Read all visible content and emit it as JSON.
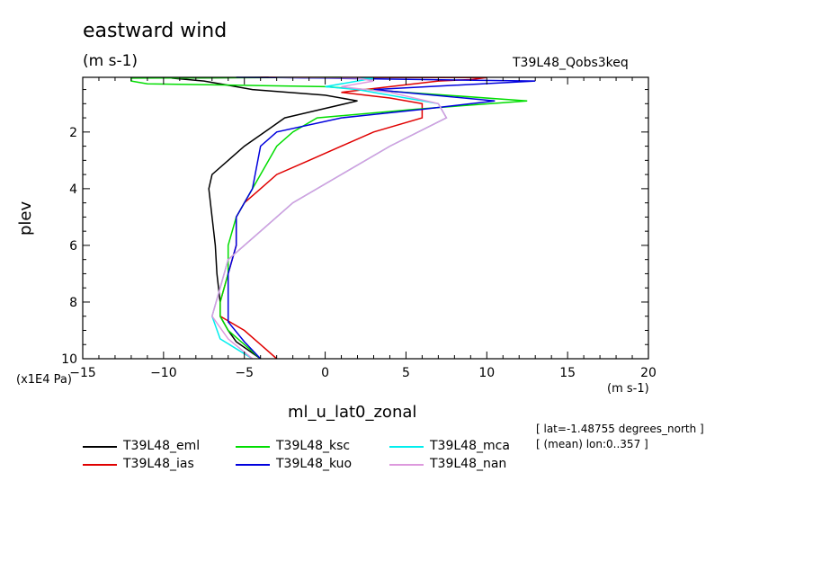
{
  "title": "eastward wind",
  "subtitle": "(m s-1)",
  "experiment": "T39L48_Qobs3keq",
  "x_unit": "(m s-1)",
  "y_unit": "(x1E4 Pa)",
  "xlabel": "ml_u_lat0_zonal",
  "ylabel": "plev",
  "info_lat": "[ lat=-1.48755 degrees_north ]",
  "info_lon": "[ (mean) lon:0..357 ]",
  "chart_data": {
    "type": "line",
    "title": "eastward wind",
    "xlabel": "ml_u_lat0_zonal",
    "ylabel": "plev",
    "xlim": [
      -15,
      20
    ],
    "ylim": [
      10,
      0.07
    ],
    "y_inverted": true,
    "x_ticks": [
      -15,
      -10,
      -5,
      0,
      5,
      10,
      15,
      20
    ],
    "y_ticks": [
      2,
      4,
      6,
      8,
      10
    ],
    "grid": false,
    "legend_position": "bottom",
    "series": [
      {
        "name": "T39L48_eml",
        "color": "#000000",
        "points": [
          [
            -3.5,
            0.07
          ],
          [
            -9.5,
            0.1
          ],
          [
            -7.5,
            0.2
          ],
          [
            -4.5,
            0.5
          ],
          [
            0,
            0.7
          ],
          [
            2,
            0.9
          ],
          [
            -2.5,
            1.5
          ],
          [
            -3.5,
            1.9
          ],
          [
            -5,
            2.5
          ],
          [
            -6,
            3
          ],
          [
            -7,
            3.5
          ],
          [
            -7.2,
            4
          ],
          [
            -7,
            5
          ],
          [
            -6.8,
            6
          ],
          [
            -6.7,
            7
          ],
          [
            -6.5,
            8
          ],
          [
            -6.5,
            8.5
          ],
          [
            -6,
            9
          ],
          [
            -5.5,
            9.4
          ],
          [
            -4,
            10
          ]
        ]
      },
      {
        "name": "T39L48_ias",
        "color": "#e00000",
        "points": [
          [
            -4,
            0.07
          ],
          [
            10,
            0.08
          ],
          [
            9,
            0.15
          ],
          [
            7,
            0.2
          ],
          [
            1,
            0.6
          ],
          [
            4,
            0.8
          ],
          [
            6,
            1
          ],
          [
            6,
            1.5
          ],
          [
            3,
            2
          ],
          [
            1,
            2.5
          ],
          [
            -1,
            3
          ],
          [
            -3,
            3.5
          ],
          [
            -4,
            4
          ],
          [
            -5,
            4.5
          ],
          [
            -5.5,
            5
          ],
          [
            -5.5,
            6
          ],
          [
            -6,
            7
          ],
          [
            -6.5,
            8
          ],
          [
            -6.5,
            8.5
          ],
          [
            -5,
            9
          ],
          [
            -4,
            9.5
          ],
          [
            -3,
            10
          ]
        ]
      },
      {
        "name": "T39L48_ksc",
        "color": "#00dd00",
        "points": [
          [
            1,
            0.07
          ],
          [
            -12,
            0.1
          ],
          [
            -12,
            0.2
          ],
          [
            -11,
            0.3
          ],
          [
            0,
            0.4
          ],
          [
            5,
            0.6
          ],
          [
            12.5,
            0.9
          ],
          [
            5.5,
            1.2
          ],
          [
            -0.5,
            1.5
          ],
          [
            -2,
            2
          ],
          [
            -3,
            2.5
          ],
          [
            -4,
            3.5
          ],
          [
            -4.5,
            4
          ],
          [
            -5.5,
            5
          ],
          [
            -6,
            6
          ],
          [
            -6,
            7
          ],
          [
            -6.5,
            8
          ],
          [
            -6.5,
            8.5
          ],
          [
            -6,
            9
          ],
          [
            -5,
            9.5
          ],
          [
            -4,
            10
          ]
        ]
      },
      {
        "name": "T39L48_kuo",
        "color": "#0000dd",
        "points": [
          [
            -5.5,
            0.07
          ],
          [
            -3,
            0.08
          ],
          [
            13,
            0.2
          ],
          [
            3,
            0.5
          ],
          [
            10.5,
            0.9
          ],
          [
            6,
            1.2
          ],
          [
            1,
            1.5
          ],
          [
            -3,
            2
          ],
          [
            -4,
            2.5
          ],
          [
            -4.5,
            4
          ],
          [
            -5,
            4.5
          ],
          [
            -5.5,
            5
          ],
          [
            -5.5,
            6
          ],
          [
            -6,
            7
          ],
          [
            -6,
            8
          ],
          [
            -6,
            8.7
          ],
          [
            -5,
            9.4
          ],
          [
            -4,
            10
          ]
        ]
      },
      {
        "name": "T39L48_mca",
        "color": "#00eeee",
        "points": [
          [
            -3,
            0.07
          ],
          [
            3,
            0.1
          ],
          [
            2,
            0.2
          ],
          [
            0,
            0.4
          ],
          [
            2,
            0.5
          ],
          [
            7,
            1
          ],
          [
            7.5,
            1.5
          ],
          [
            4,
            2.5
          ],
          [
            1,
            3.5
          ],
          [
            -2,
            4.5
          ],
          [
            -4,
            5.5
          ],
          [
            -5,
            6
          ],
          [
            -6,
            6.5
          ],
          [
            -6.5,
            7.5
          ],
          [
            -7,
            8.5
          ],
          [
            -6.5,
            9.3
          ],
          [
            -4.5,
            10
          ]
        ]
      },
      {
        "name": "T39L48_nan",
        "color": "#dd99dd",
        "points": [
          [
            -3,
            0.07
          ],
          [
            2,
            0.1
          ],
          [
            3,
            0.2
          ],
          [
            1,
            0.4
          ],
          [
            4,
            0.6
          ],
          [
            7,
            1
          ],
          [
            7.5,
            1.5
          ],
          [
            4,
            2.5
          ],
          [
            1,
            3.5
          ],
          [
            -2,
            4.5
          ],
          [
            -4,
            5.5
          ],
          [
            -5,
            6
          ],
          [
            -6,
            6.5
          ],
          [
            -6.5,
            7.5
          ],
          [
            -7,
            8.5
          ],
          [
            -6,
            9.3
          ],
          [
            -4.5,
            10
          ]
        ]
      }
    ]
  }
}
